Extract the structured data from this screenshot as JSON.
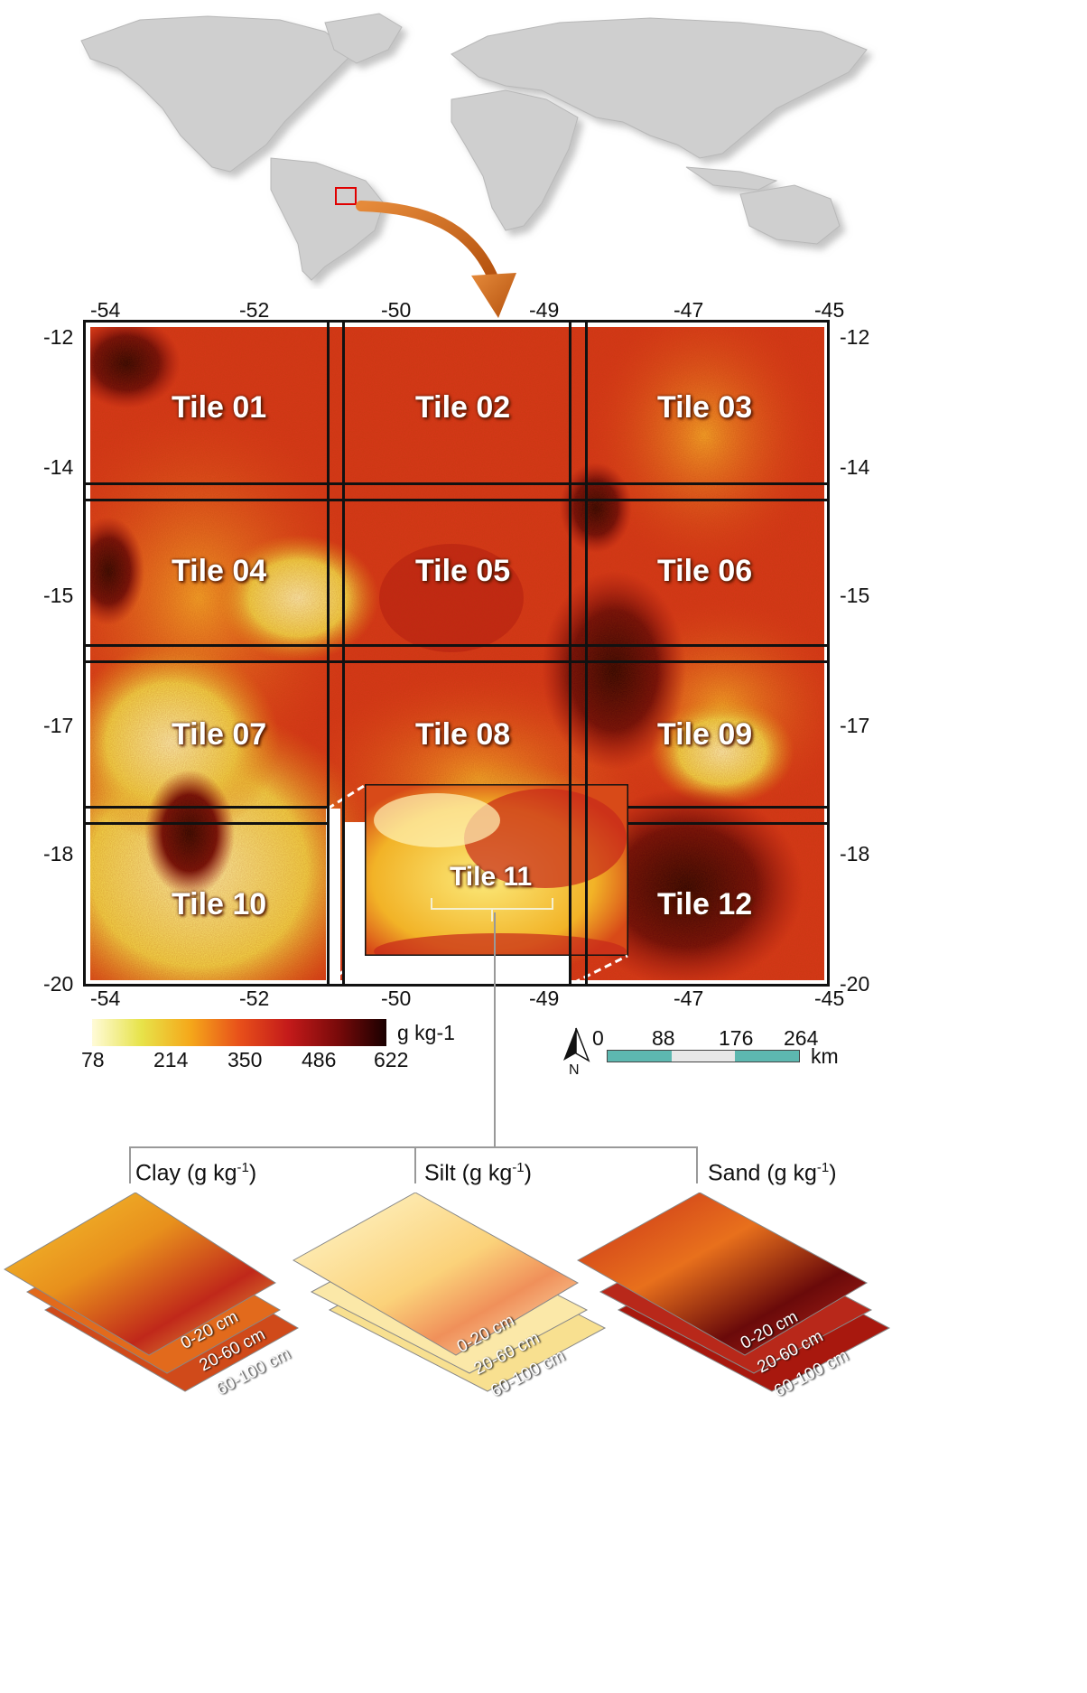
{
  "colors": {
    "land": "#cfcfcf",
    "highlight_box": "#e00000",
    "arrow": "#d46a1c",
    "scalebar_teal": "#5db8b0",
    "scalebar_gray": "#e8e8e8"
  },
  "map": {
    "lon_ticks": [
      "-54",
      "-52",
      "-50",
      "-49",
      "-47",
      "-45"
    ],
    "lat_ticks": [
      "-12",
      "-14",
      "-15",
      "-17",
      "-18",
      "-20"
    ],
    "tiles": [
      "Tile 01",
      "Tile 02",
      "Tile 03",
      "Tile 04",
      "Tile 05",
      "Tile 06",
      "Tile 07",
      "Tile 08",
      "Tile 09",
      "Tile 10",
      "Tile 11",
      "Tile 12"
    ]
  },
  "legend": {
    "unit": "g kg-1",
    "ticks": [
      "78",
      "214",
      "350",
      "486",
      "622"
    ],
    "stops": [
      "#fffbd8",
      "#e7e34a",
      "#f5a81a",
      "#e8501a",
      "#c41a1a",
      "#7a0a0a",
      "#1a0000"
    ]
  },
  "scalebar": {
    "north_label": "N",
    "ticks": [
      "0",
      "88",
      "176",
      "264"
    ],
    "unit": "km"
  },
  "layers": {
    "clay": {
      "title": "Clay (g kg",
      "sup": "-1",
      "close": ")"
    },
    "silt": {
      "title": "Silt (g kg",
      "sup": "-1",
      "close": ")"
    },
    "sand": {
      "title": "Sand (g kg",
      "sup": "-1",
      "close": ")"
    },
    "depths": [
      "0-20 cm",
      "20-60 cm",
      "60-100 cm"
    ]
  }
}
